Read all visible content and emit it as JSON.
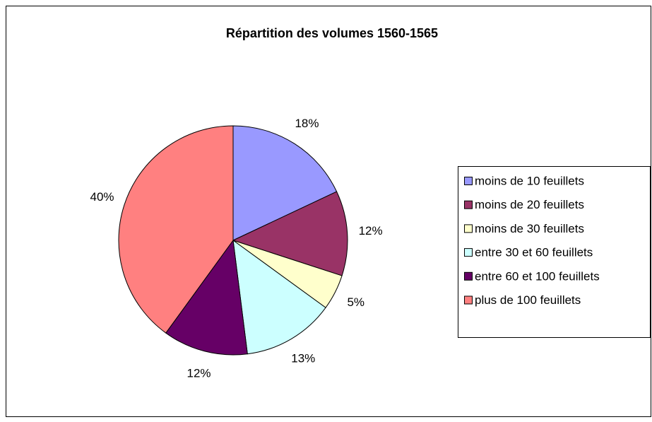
{
  "chart_data": {
    "type": "pie",
    "title": "Répartition des volumes 1560-1565",
    "categories": [
      "moins de 10 feuillets",
      "moins de 20 feuillets",
      "moins de 30 feuillets",
      "entre 30 et 60 feuillets",
      "entre 60 et 100 feuillets",
      "plus de 100 feuillets"
    ],
    "values": [
      18,
      12,
      5,
      13,
      12,
      40
    ],
    "value_labels": [
      "18%",
      "12%",
      "5%",
      "13%",
      "12%",
      "40%"
    ],
    "colors": [
      "#9999ff",
      "#993366",
      "#ffffcc",
      "#ccffff",
      "#660066",
      "#ff8080"
    ],
    "legend": "right"
  }
}
